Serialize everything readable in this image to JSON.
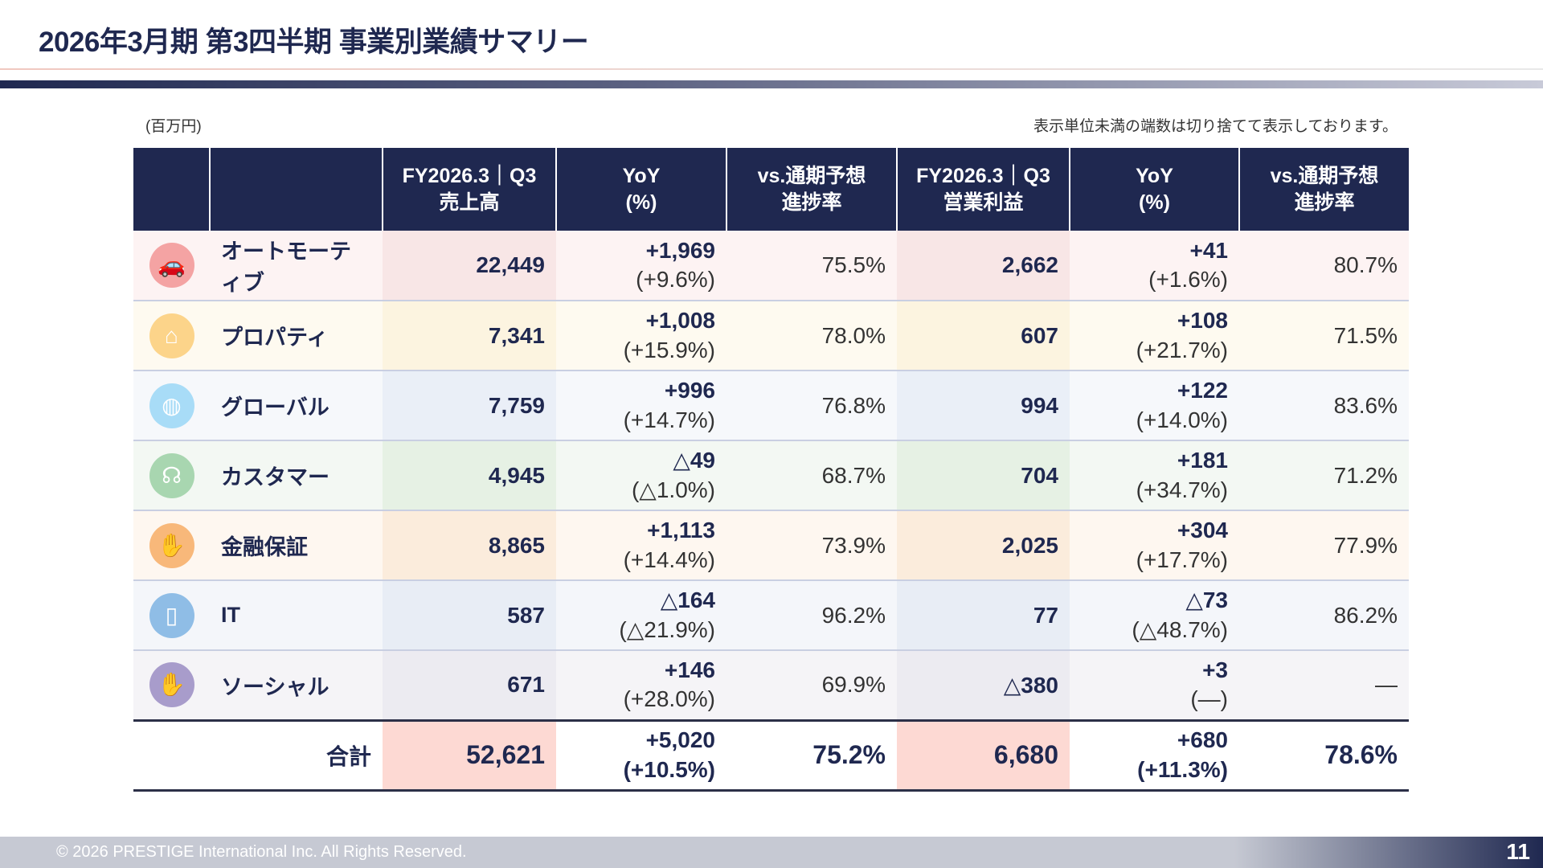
{
  "title": "2026年3月期 第3四半期 事業別業績サマリー",
  "unit": "(百万円)",
  "note": "表示単位未満の端数は切り捨てて表示しております。",
  "headers": {
    "sales": [
      "FY2026.3｜Q3",
      "売上高"
    ],
    "yoy": [
      "YoY",
      "(%)"
    ],
    "progress": [
      "vs.通期予想",
      "進捗率"
    ],
    "op": [
      "FY2026.3｜Q3",
      "営業利益"
    ]
  },
  "rows": [
    {
      "name": "オートモーティブ",
      "icon": "car-icon",
      "icon_color": "#f4a3a3",
      "bg": "#fdf3f3",
      "hl": "#f8e6e6",
      "sales": "22,449",
      "sales_yoy": "+1,969",
      "sales_yoy_pct": "(+9.6%)",
      "sales_prog": "75.5%",
      "op": "2,662",
      "op_yoy": "+41",
      "op_yoy_pct": "(+1.6%)",
      "op_prog": "80.7%"
    },
    {
      "name": "プロパティ",
      "icon": "house-icon",
      "icon_color": "#fcd48a",
      "bg": "#fefaf0",
      "hl": "#fcf4e0",
      "sales": "7,341",
      "sales_yoy": "+1,008",
      "sales_yoy_pct": "(+15.9%)",
      "sales_prog": "78.0%",
      "op": "607",
      "op_yoy": "+108",
      "op_yoy_pct": "(+21.7%)",
      "op_prog": "71.5%"
    },
    {
      "name": "グローバル",
      "icon": "globe-icon",
      "icon_color": "#a8dcf7",
      "bg": "#f6f8fb",
      "hl": "#eaeff7",
      "sales": "7,759",
      "sales_yoy": "+996",
      "sales_yoy_pct": "(+14.7%)",
      "sales_prog": "76.8%",
      "op": "994",
      "op_yoy": "+122",
      "op_yoy_pct": "(+14.0%)",
      "op_prog": "83.6%"
    },
    {
      "name": "カスタマー",
      "icon": "headset-icon",
      "icon_color": "#a8d6b0",
      "bg": "#f3f8f3",
      "hl": "#e6f1e4",
      "sales": "4,945",
      "sales_yoy": "△49",
      "sales_yoy_pct": "(△1.0%)",
      "sales_prog": "68.7%",
      "op": "704",
      "op_yoy": "+181",
      "op_yoy_pct": "(+34.7%)",
      "op_prog": "71.2%"
    },
    {
      "name": "金融保証",
      "icon": "coin-hand-icon",
      "icon_color": "#f8b87a",
      "bg": "#fef7f0",
      "hl": "#fbecdc",
      "sales": "8,865",
      "sales_yoy": "+1,113",
      "sales_yoy_pct": "(+14.4%)",
      "sales_prog": "73.9%",
      "op": "2,025",
      "op_yoy": "+304",
      "op_yoy_pct": "(+17.7%)",
      "op_prog": "77.9%"
    },
    {
      "name": "IT",
      "icon": "phone-hand-icon",
      "icon_color": "#8fbde6",
      "bg": "#f4f6fa",
      "hl": "#e8edf5",
      "sales": "587",
      "sales_yoy": "△164",
      "sales_yoy_pct": "(△21.9%)",
      "sales_prog": "96.2%",
      "op": "77",
      "op_yoy": "△73",
      "op_yoy_pct": "(△48.7%)",
      "op_prog": "86.2%"
    },
    {
      "name": "ソーシャル",
      "icon": "care-hands-icon",
      "icon_color": "#a89ccb",
      "bg": "#f5f4f7",
      "hl": "#ecebf1",
      "sales": "671",
      "sales_yoy": "+146",
      "sales_yoy_pct": "(+28.0%)",
      "sales_prog": "69.9%",
      "op": "△380",
      "op_yoy": "+3",
      "op_yoy_pct": "(—)",
      "op_prog": "—"
    }
  ],
  "total": {
    "name": "合計",
    "sales": "52,621",
    "sales_yoy": "+5,020",
    "sales_yoy_pct": "(+10.5%)",
    "sales_prog": "75.2%",
    "op": "6,680",
    "op_yoy": "+680",
    "op_yoy_pct": "(+11.3%)",
    "op_prog": "78.6%"
  },
  "footer": {
    "copyright": "© 2026 PRESTIGE International Inc. All Rights Reserved.",
    "page": "11"
  }
}
